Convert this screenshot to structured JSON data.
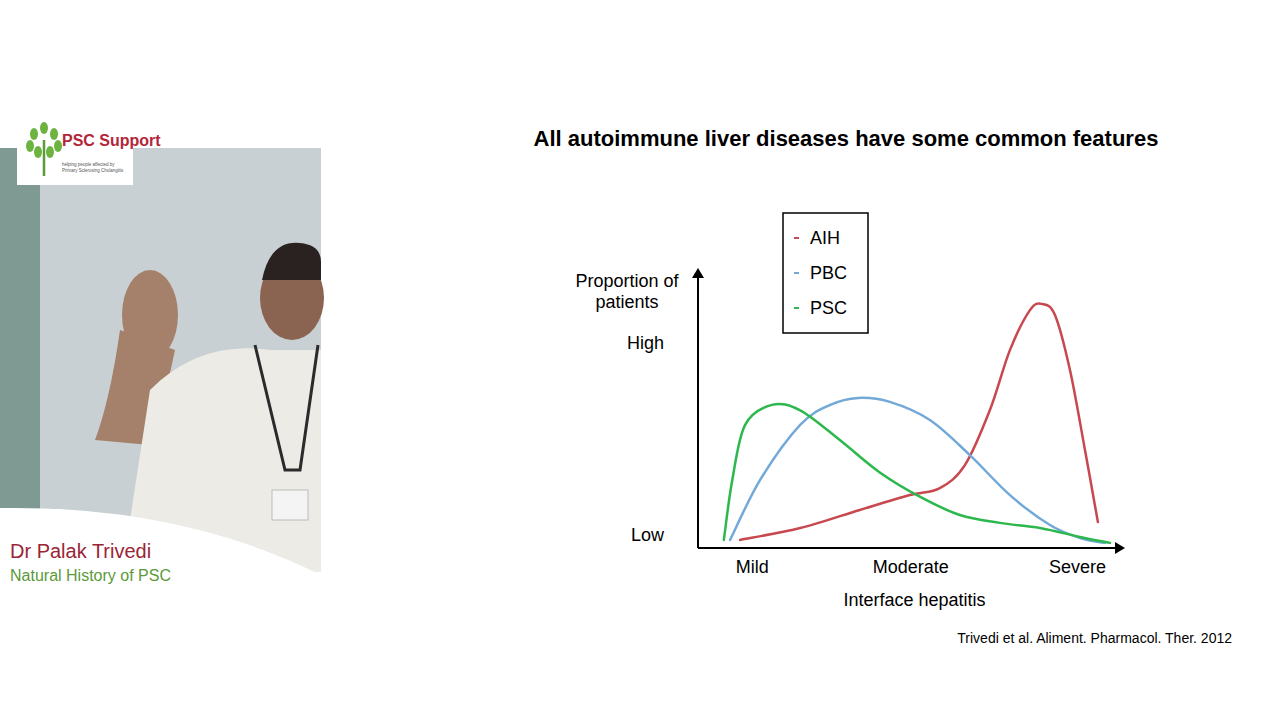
{
  "chart_data": {
    "type": "line",
    "title": "All autoimmune liver diseases have some common features",
    "x_label": "Interface hepatitis",
    "y_label": "Proportion of patients",
    "xlim": [
      0,
      100
    ],
    "ylim": [
      0,
      100
    ],
    "xticks": [
      {
        "value": 13,
        "label": "Mild"
      },
      {
        "value": 51,
        "label": "Moderate"
      },
      {
        "value": 91,
        "label": "Severe"
      }
    ],
    "yticks": [
      {
        "value": 5,
        "label": "Low"
      },
      {
        "value": 76,
        "label": "High"
      }
    ],
    "grid": false,
    "legend": "top-left",
    "series": [
      {
        "name": "AIH",
        "color": "#c8484f",
        "x": [
          10.1,
          24.5,
          38.8,
          50.8,
          58,
          64,
          70,
          74.8,
          79.6,
          82.5,
          85.6,
          89.2,
          92.8,
          95.9
        ],
        "values": [
          3.0,
          7.4,
          14.1,
          19.6,
          22.2,
          30.7,
          51.1,
          73.3,
          88.1,
          90.4,
          86.3,
          65.9,
          36.3,
          9.6
        ]
      },
      {
        "name": "PBC",
        "color": "#72a9d8",
        "x": [
          7.7,
          14.9,
          24.5,
          31.7,
          38.4,
          46,
          55.6,
          65.2,
          74.8,
          84.4,
          91.6,
          97.6
        ],
        "values": [
          3.0,
          25.2,
          45.6,
          53,
          55.6,
          54.1,
          47.4,
          34.4,
          19.6,
          8.5,
          3.7,
          1.9
        ]
      },
      {
        "name": "PSC",
        "color": "#2db84d",
        "x": [
          6.2,
          8.2,
          11.3,
          17.7,
          24.5,
          34,
          43.6,
          53.2,
          62.8,
          72.4,
          82,
          91.6,
          98.8
        ],
        "values": [
          3.0,
          25,
          45.6,
          53,
          51,
          40,
          28,
          19,
          12.2,
          9.3,
          7.4,
          4.1,
          1.9
        ]
      }
    ],
    "annotations": [
      "Trivedi et al. Aliment. Pharmacol. Ther.  2012"
    ]
  },
  "overlay": {
    "logo_title": "PSC Support",
    "logo_tagline": "helping people affected by Primary Sclerosing Cholangitis",
    "speaker": "Dr Palak Trivedi",
    "talk": "Natural History of PSC"
  }
}
